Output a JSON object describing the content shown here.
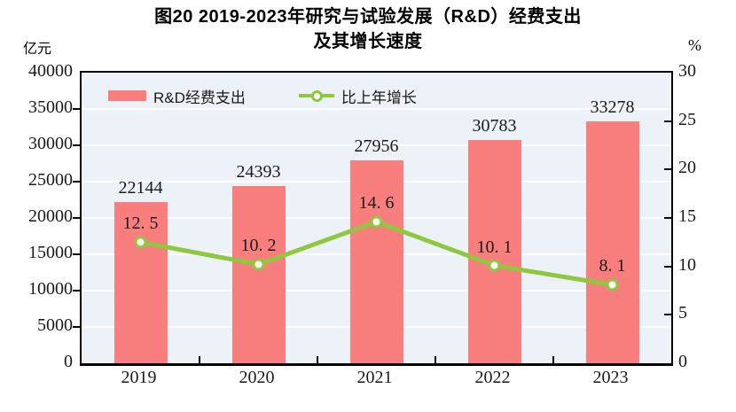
{
  "title": {
    "line1": "图20  2019-2023年研究与试验发展（R&D）经费支出",
    "line2": "及其增长速度"
  },
  "axes": {
    "left_unit": "亿元",
    "right_unit": "%"
  },
  "legend": {
    "bar_label": "R&D经费支出",
    "line_label": "比上年增长"
  },
  "colors": {
    "bar": "#F97E7E",
    "line": "#8FC73E",
    "marker_fill": "#FFFFFF",
    "plot_bg": "#ECF2F7",
    "grid": "#FFFFFF",
    "axis": "#000000",
    "text": "#1A1A1A"
  },
  "chart_data": {
    "type": "bar+line combo",
    "title": "图20 2019-2023年研究与试验发展（R&D）经费支出及其增长速度",
    "categories": [
      "2019",
      "2020",
      "2021",
      "2022",
      "2023"
    ],
    "series": [
      {
        "name": "R&D经费支出",
        "type": "bar",
        "axis": "left",
        "unit": "亿元",
        "values": [
          22144,
          24393,
          27956,
          30783,
          33278
        ],
        "labels": [
          "22144",
          "24393",
          "27956",
          "30783",
          "33278"
        ],
        "color": "#F97E7E"
      },
      {
        "name": "比上年增长",
        "type": "line",
        "axis": "right",
        "unit": "%",
        "values": [
          12.5,
          10.2,
          14.6,
          10.1,
          8.1
        ],
        "labels": [
          "12. 5",
          "10. 2",
          "14. 6",
          "10. 1",
          "8. 1"
        ],
        "color": "#8FC73E"
      }
    ],
    "left_axis": {
      "label": "亿元",
      "min": 0,
      "max": 40000,
      "step": 5000,
      "tick_labels": [
        "40000",
        "35000",
        "30000",
        "25000",
        "20000",
        "15000",
        "10000",
        "5000",
        "0"
      ]
    },
    "right_axis": {
      "label": "%",
      "min": 0,
      "max": 30,
      "step": 5,
      "tick_labels": [
        "30",
        "25",
        "20",
        "15",
        "10",
        "5",
        "0"
      ]
    },
    "grid": true,
    "legend_position": "top-left-inside"
  }
}
